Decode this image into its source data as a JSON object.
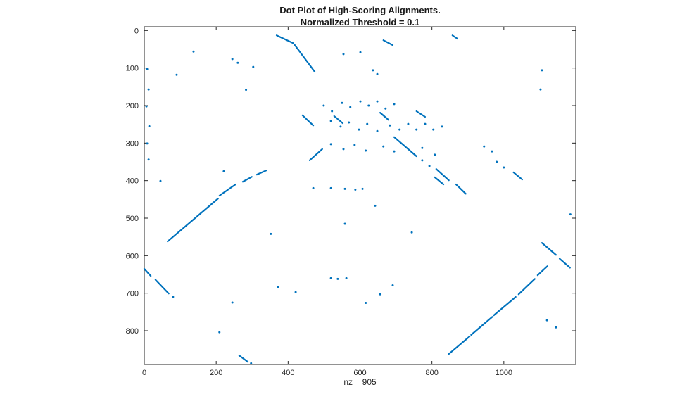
{
  "figure": {
    "title_line1": "Dot Plot of High-Scoring Alignments.",
    "title_line2": "Normalized Threshold = 0.1",
    "xlabel": "nz = 905"
  },
  "chart_data": {
    "type": "scatter",
    "title": "Dot Plot of High-Scoring Alignments. Normalized Threshold = 0.1",
    "xlabel": "nz = 905",
    "ylabel": "",
    "nz": 905,
    "x_ticks": [
      0,
      200,
      400,
      600,
      800,
      1000
    ],
    "y_ticks": [
      0,
      100,
      200,
      300,
      400,
      500,
      600,
      700,
      800
    ],
    "xlim": [
      0,
      1200
    ],
    "ylim": [
      -10,
      890
    ],
    "y_axis_reversed": true,
    "grid": false,
    "legend": "none",
    "marker_color": "#0072BD",
    "axis_color": "#262626",
    "segments": [
      [
        368,
        13,
        415,
        34
      ],
      [
        418,
        38,
        474,
        110
      ],
      [
        665,
        26,
        691,
        39
      ],
      [
        857,
        13,
        871,
        22
      ],
      [
        528,
        228,
        552,
        247
      ],
      [
        656,
        219,
        679,
        238
      ],
      [
        757,
        215,
        781,
        230
      ],
      [
        440,
        226,
        470,
        253
      ],
      [
        460,
        346,
        495,
        316
      ],
      [
        65,
        562,
        205,
        448
      ],
      [
        209,
        440,
        254,
        410
      ],
      [
        274,
        403,
        299,
        390
      ],
      [
        313,
        384,
        339,
        373
      ],
      [
        695,
        284,
        757,
        335
      ],
      [
        812,
        369,
        847,
        399
      ],
      [
        808,
        391,
        832,
        410
      ],
      [
        867,
        410,
        894,
        435
      ],
      [
        1027,
        378,
        1051,
        397
      ],
      [
        1106,
        566,
        1145,
        598
      ],
      [
        1155,
        608,
        1184,
        632
      ],
      [
        847,
        862,
        905,
        815
      ],
      [
        909,
        811,
        968,
        763
      ],
      [
        972,
        759,
        1033,
        710
      ],
      [
        1041,
        703,
        1086,
        662
      ],
      [
        1094,
        652,
        1121,
        628
      ],
      [
        0,
        635,
        18,
        654
      ],
      [
        31,
        664,
        68,
        701
      ],
      [
        264,
        866,
        288,
        883
      ]
    ],
    "points": [
      [
        137,
        56
      ],
      [
        245,
        76
      ],
      [
        260,
        86
      ],
      [
        303,
        97
      ],
      [
        283,
        158
      ],
      [
        554,
        63
      ],
      [
        601,
        58
      ],
      [
        636,
        106
      ],
      [
        648,
        116
      ],
      [
        1106,
        106
      ],
      [
        1102,
        157
      ],
      [
        8,
        103
      ],
      [
        12,
        157
      ],
      [
        6,
        202
      ],
      [
        14,
        255
      ],
      [
        8,
        301
      ],
      [
        12,
        344
      ],
      [
        90,
        118
      ],
      [
        45,
        401
      ],
      [
        221,
        375
      ],
      [
        499,
        200
      ],
      [
        550,
        193
      ],
      [
        601,
        189
      ],
      [
        648,
        189
      ],
      [
        695,
        196
      ],
      [
        522,
        215
      ],
      [
        573,
        204
      ],
      [
        624,
        200
      ],
      [
        671,
        208
      ],
      [
        519,
        241
      ],
      [
        546,
        256
      ],
      [
        569,
        245
      ],
      [
        597,
        264
      ],
      [
        620,
        249
      ],
      [
        648,
        268
      ],
      [
        683,
        253
      ],
      [
        710,
        264
      ],
      [
        734,
        249
      ],
      [
        757,
        264
      ],
      [
        781,
        249
      ],
      [
        804,
        264
      ],
      [
        828,
        256
      ],
      [
        519,
        303
      ],
      [
        554,
        316
      ],
      [
        585,
        305
      ],
      [
        616,
        320
      ],
      [
        665,
        309
      ],
      [
        695,
        322
      ],
      [
        773,
        313
      ],
      [
        808,
        331
      ],
      [
        470,
        420
      ],
      [
        519,
        420
      ],
      [
        558,
        422
      ],
      [
        587,
        424
      ],
      [
        607,
        422
      ],
      [
        773,
        346
      ],
      [
        793,
        361
      ],
      [
        945,
        309
      ],
      [
        967,
        322
      ],
      [
        980,
        350
      ],
      [
        1000,
        365
      ],
      [
        642,
        467
      ],
      [
        558,
        515
      ],
      [
        744,
        538
      ],
      [
        352,
        542
      ],
      [
        1185,
        490
      ],
      [
        372,
        684
      ],
      [
        421,
        697
      ],
      [
        519,
        660
      ],
      [
        538,
        662
      ],
      [
        562,
        660
      ],
      [
        656,
        703
      ],
      [
        691,
        679
      ],
      [
        616,
        726
      ],
      [
        209,
        804
      ],
      [
        245,
        725
      ],
      [
        297,
        887
      ],
      [
        80,
        710
      ],
      [
        1120,
        772
      ],
      [
        1145,
        791
      ]
    ]
  }
}
